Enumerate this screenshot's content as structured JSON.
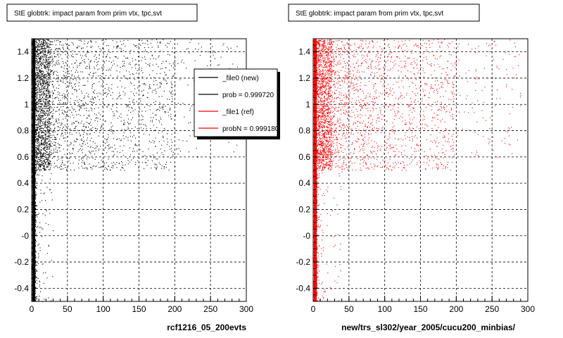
{
  "canvas": {
    "footer_text": "",
    "background": "#ffffff"
  },
  "panels": [
    {
      "title": "StE globtrk: impact param from prim vtx, tpc,svt",
      "xlabel": "rcf1216_05_200evts",
      "marker_color": "#000000",
      "legend": {
        "placement": "top-right",
        "entries": [
          {
            "label": "_file0 (new)",
            "color": "#000000"
          },
          {
            "label": "prob = 0.999720",
            "color": "#000000"
          },
          {
            "label": "_file1 (ref)",
            "color": "#ff0000"
          },
          {
            "label": "probN = 0.999180",
            "color": "#ff0000"
          }
        ]
      }
    },
    {
      "title": "StE globtrk: impact param from prim vtx, tpc,svt",
      "xlabel": "new/trs_sl302/year_2005/cucu200_minbias/",
      "marker_color": "#ff0000",
      "legend": null
    }
  ],
  "chart_data": [
    {
      "type": "scatter",
      "title": "StE globtrk: impact param from prim vtx, tpc,svt",
      "xlabel": "rcf1216_05_200evts",
      "ylabel": "",
      "xlim": [
        0,
        300
      ],
      "ylim": [
        -0.5,
        1.5
      ],
      "x_ticks": [
        "0",
        "50",
        "100",
        "150",
        "200",
        "250",
        "300"
      ],
      "y_ticks": [
        "-0.4",
        "-0.2",
        "-0",
        "0.2",
        "0.4",
        "0.6",
        "0.8",
        "1",
        "1.2",
        "1.4"
      ],
      "grid": true,
      "series": [
        {
          "name": "_file0 (new)",
          "color": "#000000",
          "description_points": [
            {
              "x_range": [
                0,
                5
              ],
              "y_range": [
                -0.5,
                1.5
              ],
              "density": "very high"
            },
            {
              "x_range": [
                5,
                25
              ],
              "y_range": [
                0.5,
                1.5
              ],
              "density": "high"
            },
            {
              "x_range": [
                25,
                200
              ],
              "y_range": [
                0.5,
                1.5
              ],
              "density": "medium"
            },
            {
              "x_range": [
                200,
                290
              ],
              "y_range": [
                0.6,
                1.5
              ],
              "density": "low"
            },
            {
              "x_range": [
                5,
                30
              ],
              "y_range": [
                -0.5,
                0.5
              ],
              "density": "low"
            }
          ]
        }
      ],
      "legend": [
        {
          "label": "_file0 (new)",
          "color": "#000000"
        },
        {
          "label": "prob = 0.999720",
          "color": "#000000"
        },
        {
          "label": "_file1 (ref)",
          "color": "#ff0000"
        },
        {
          "label": "probN = 0.999180",
          "color": "#ff0000"
        }
      ]
    },
    {
      "type": "scatter",
      "title": "StE globtrk: impact param from prim vtx, tpc,svt",
      "xlabel": "new/trs_sl302/year_2005/cucu200_minbias/",
      "ylabel": "",
      "xlim": [
        0,
        300
      ],
      "ylim": [
        -0.5,
        1.5
      ],
      "x_ticks": [
        "0",
        "50",
        "100",
        "150",
        "200",
        "250",
        "300"
      ],
      "y_ticks": [
        "-0.4",
        "-0.2",
        "-0",
        "0.2",
        "0.4",
        "0.6",
        "0.8",
        "1",
        "1.2",
        "1.4"
      ],
      "grid": true,
      "series": [
        {
          "name": "_file1 (ref)",
          "color": "#ff0000",
          "description_points": [
            {
              "x_range": [
                0,
                5
              ],
              "y_range": [
                -0.5,
                1.5
              ],
              "density": "very high"
            },
            {
              "x_range": [
                5,
                25
              ],
              "y_range": [
                0.5,
                1.5
              ],
              "density": "high"
            },
            {
              "x_range": [
                25,
                200
              ],
              "y_range": [
                0.5,
                1.5
              ],
              "density": "medium"
            },
            {
              "x_range": [
                200,
                290
              ],
              "y_range": [
                0.6,
                1.5
              ],
              "density": "low"
            },
            {
              "x_range": [
                5,
                40
              ],
              "y_range": [
                -0.5,
                0.5
              ],
              "density": "low"
            }
          ]
        }
      ]
    }
  ]
}
